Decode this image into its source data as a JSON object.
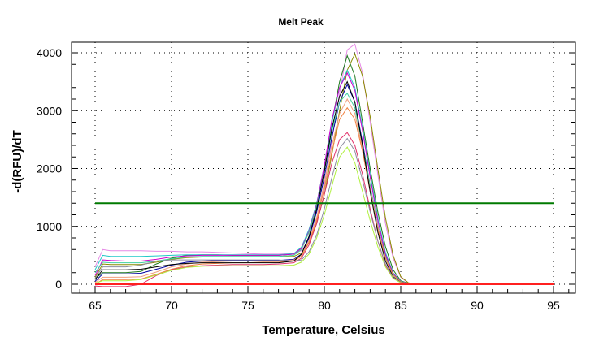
{
  "chart_data": {
    "type": "line",
    "title": "Melt Peak",
    "xlabel": "Temperature, Celsius",
    "ylabel": "-d(RFU)/dT",
    "xlim": [
      63.45,
      96.4
    ],
    "ylim": [
      -154,
      4407
    ],
    "xticks": [
      65,
      70,
      75,
      80,
      85,
      90,
      95
    ],
    "yticks": [
      0,
      1000,
      2000,
      3000,
      4000
    ],
    "grid": true,
    "legend": "none",
    "threshold": {
      "value": 1400,
      "color": "#007a00"
    },
    "x": [
      65,
      65.5,
      66,
      67,
      68,
      69,
      70,
      71,
      72,
      73,
      74,
      75,
      76,
      77,
      78,
      78.5,
      79,
      79.5,
      80,
      80.5,
      81,
      81.5,
      82,
      82.5,
      83,
      83.5,
      84,
      84.5,
      85,
      85.5,
      86,
      88,
      90,
      92,
      95
    ],
    "series": [
      {
        "color": "#e68ae6",
        "values": [
          300,
          600,
          580,
          580,
          580,
          570,
          570,
          560,
          560,
          550,
          540,
          530,
          520,
          520,
          530,
          580,
          780,
          1150,
          1700,
          2500,
          3300,
          4050,
          4150,
          3650,
          2800,
          1900,
          1050,
          450,
          120,
          20,
          12,
          10,
          8,
          5,
          0
        ]
      },
      {
        "color": "#1e7a1e",
        "values": [
          100,
          200,
          200,
          200,
          220,
          350,
          450,
          500,
          510,
          510,
          500,
          500,
          500,
          500,
          520,
          620,
          900,
          1350,
          2000,
          2800,
          3500,
          3950,
          3600,
          2800,
          2000,
          1250,
          650,
          250,
          60,
          15,
          10,
          8,
          5,
          3,
          0
        ]
      },
      {
        "color": "#8b8b00",
        "values": [
          120,
          350,
          340,
          340,
          340,
          380,
          430,
          460,
          470,
          470,
          470,
          470,
          470,
          470,
          480,
          540,
          720,
          1050,
          1550,
          2250,
          3000,
          3700,
          3980,
          3600,
          2900,
          2000,
          1150,
          500,
          130,
          25,
          12,
          10,
          6,
          4,
          0
        ]
      },
      {
        "color": "#20c8c8",
        "values": [
          250,
          500,
          480,
          480,
          480,
          490,
          500,
          510,
          510,
          510,
          510,
          510,
          510,
          510,
          530,
          640,
          950,
          1400,
          2050,
          2800,
          3400,
          3700,
          3400,
          2700,
          1900,
          1150,
          550,
          200,
          50,
          12,
          8,
          6,
          4,
          2,
          -5
        ]
      },
      {
        "color": "#d000d0",
        "values": [
          150,
          420,
          410,
          400,
          400,
          430,
          470,
          490,
          500,
          500,
          500,
          500,
          500,
          500,
          520,
          620,
          920,
          1380,
          2050,
          2850,
          3400,
          3650,
          3350,
          2650,
          1850,
          1100,
          520,
          190,
          45,
          12,
          8,
          6,
          4,
          2,
          0
        ]
      },
      {
        "color": "#0000a0",
        "values": [
          50,
          180,
          180,
          180,
          190,
          260,
          330,
          380,
          400,
          410,
          410,
          410,
          410,
          410,
          430,
          520,
          800,
          1250,
          1850,
          2550,
          3150,
          3450,
          3150,
          2450,
          1700,
          1000,
          480,
          170,
          40,
          10,
          8,
          6,
          4,
          2,
          0
        ]
      },
      {
        "color": "#40d0a0",
        "values": [
          200,
          380,
          370,
          370,
          370,
          400,
          440,
          470,
          480,
          480,
          480,
          480,
          480,
          480,
          500,
          600,
          900,
          1350,
          1950,
          2650,
          3150,
          3300,
          3050,
          2400,
          1700,
          1000,
          470,
          170,
          40,
          10,
          8,
          6,
          4,
          2,
          0
        ]
      },
      {
        "color": "#f0a080",
        "values": [
          30,
          120,
          120,
          120,
          130,
          210,
          300,
          350,
          380,
          390,
          400,
          400,
          400,
          400,
          420,
          500,
          760,
          1150,
          1750,
          2400,
          2950,
          3200,
          2950,
          2350,
          1650,
          980,
          460,
          160,
          40,
          10,
          8,
          6,
          4,
          2,
          0
        ]
      },
      {
        "color": "#f08040",
        "values": [
          0,
          80,
          80,
          80,
          90,
          170,
          260,
          320,
          350,
          360,
          370,
          370,
          380,
          380,
          400,
          480,
          720,
          1100,
          1650,
          2300,
          2850,
          3050,
          2850,
          2300,
          1600,
          950,
          450,
          160,
          40,
          10,
          8,
          6,
          4,
          2,
          0
        ]
      },
      {
        "color": "#000000",
        "values": [
          80,
          250,
          250,
          250,
          260,
          300,
          340,
          360,
          370,
          370,
          370,
          370,
          370,
          370,
          400,
          520,
          830,
          1300,
          1950,
          2700,
          3250,
          3500,
          3150,
          2400,
          1600,
          900,
          400,
          130,
          30,
          10,
          8,
          6,
          4,
          2,
          0
        ]
      },
      {
        "color": "#e0306a",
        "values": [
          -30,
          -40,
          -40,
          -40,
          0,
          150,
          250,
          300,
          320,
          330,
          340,
          340,
          340,
          350,
          370,
          450,
          680,
          1050,
          1550,
          2100,
          2500,
          2620,
          2400,
          1900,
          1300,
          750,
          330,
          110,
          25,
          8,
          6,
          4,
          3,
          2,
          0
        ]
      },
      {
        "color": "#8c8ca0",
        "values": [
          100,
          300,
          300,
          300,
          330,
          400,
          420,
          420,
          420,
          420,
          420,
          420,
          420,
          420,
          400,
          420,
          560,
          850,
          1300,
          1850,
          2350,
          2520,
          2300,
          1800,
          1250,
          750,
          350,
          120,
          30,
          8,
          6,
          4,
          3,
          2,
          0
        ]
      },
      {
        "color": "#b0f040",
        "values": [
          20,
          60,
          60,
          60,
          80,
          160,
          240,
          290,
          310,
          320,
          320,
          320,
          320,
          320,
          330,
          380,
          520,
          800,
          1200,
          1700,
          2200,
          2370,
          2100,
          1600,
          1100,
          650,
          300,
          100,
          25,
          8,
          6,
          4,
          3,
          2,
          0
        ]
      },
      {
        "color": "#ff2020",
        "values": [
          0,
          0,
          0,
          0,
          0,
          0,
          0,
          0,
          0,
          0,
          0,
          0,
          0,
          0,
          0,
          0,
          0,
          0,
          0,
          0,
          0,
          0,
          0,
          0,
          0,
          0,
          0,
          0,
          0,
          0,
          0,
          0,
          0,
          0,
          0
        ]
      }
    ]
  }
}
